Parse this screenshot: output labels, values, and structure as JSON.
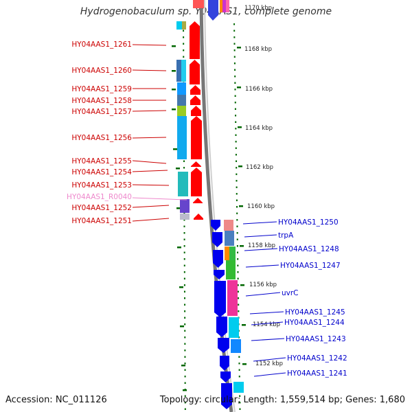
{
  "map": {
    "title": "Hydrogenobaculum sp. Y04AAS1, complete genome",
    "colors": {
      "forward_label": "#cc0000",
      "reverse_label": "#0000cc",
      "rna_label": "#ee88cc",
      "forward_arrow": "#ff0000",
      "reverse_arrow": "#0000ee",
      "tick_dots": "#006600"
    },
    "ticks": [
      {
        "label": "1170 kbp"
      },
      {
        "label": "1168 kbp"
      },
      {
        "label": "1166 kbp"
      },
      {
        "label": "1164 kbp"
      },
      {
        "label": "1162 kbp"
      },
      {
        "label": "1160 kbp"
      },
      {
        "label": "1158 kbp"
      },
      {
        "label": "1156 kbp"
      },
      {
        "label": "1154 kbp"
      },
      {
        "label": "1152 kbp"
      }
    ],
    "left_labels": [
      {
        "text": "HY04AAS1_1261",
        "type": "cds"
      },
      {
        "text": "HY04AAS1_1260",
        "type": "cds"
      },
      {
        "text": "HY04AAS1_1259",
        "type": "cds"
      },
      {
        "text": "HY04AAS1_1258",
        "type": "cds"
      },
      {
        "text": "HY04AAS1_1257",
        "type": "cds"
      },
      {
        "text": "HY04AAS1_1256",
        "type": "cds"
      },
      {
        "text": "HY04AAS1_1255",
        "type": "cds"
      },
      {
        "text": "HY04AAS1_1254",
        "type": "cds"
      },
      {
        "text": "HY04AAS1_1253",
        "type": "cds"
      },
      {
        "text": "HY04AAS1_R0040",
        "type": "rna"
      },
      {
        "text": "HY04AAS1_1252",
        "type": "cds"
      },
      {
        "text": "HY04AAS1_1251",
        "type": "cds"
      }
    ],
    "right_labels": [
      {
        "text": "HY04AAS1_1250"
      },
      {
        "text": "trpA"
      },
      {
        "text": "HY04AAS1_1248"
      },
      {
        "text": "HY04AAS1_1247"
      },
      {
        "text": "uvrC"
      },
      {
        "text": "HY04AAS1_1245"
      },
      {
        "text": "HY04AAS1_1244"
      },
      {
        "text": "HY04AAS1_1243"
      },
      {
        "text": "HY04AAS1_1242"
      },
      {
        "text": "HY04AAS1_1241"
      }
    ]
  },
  "footer": {
    "accession": "Accession: NC_011126",
    "summary": "Topology: circular; Length: 1,559,514 bp; Genes: 1,680"
  }
}
